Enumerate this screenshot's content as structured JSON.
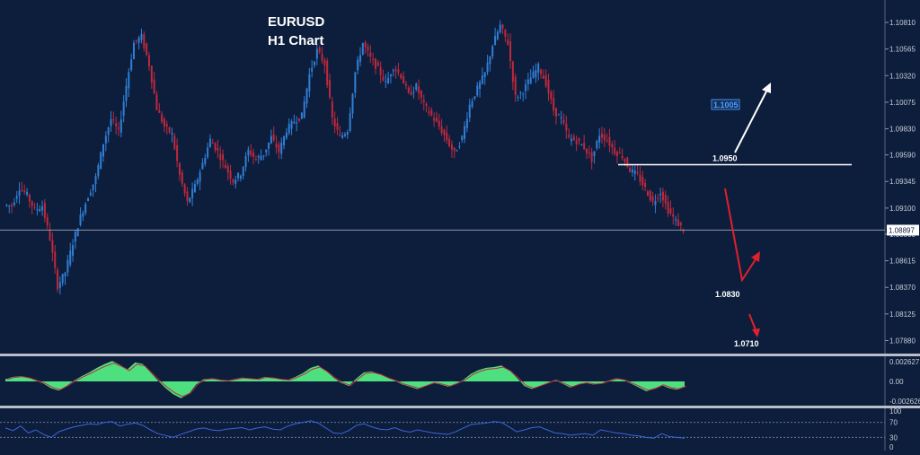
{
  "chart_data": [
    {
      "type": "candlestick",
      "symbol": "EURUSD",
      "timeframe": "H1 Chart",
      "title": "EURUSD",
      "subtitle": "H1 Chart",
      "ylim": [
        1.0776,
        1.11
      ],
      "y_ticks": [
        "1.10810",
        "1.10565",
        "1.10320",
        "1.10075",
        "1.09830",
        "1.09590",
        "1.09345",
        "1.09100",
        "1.08860",
        "1.08615",
        "1.08370",
        "1.08125",
        "1.07880"
      ],
      "current_price": "1.08897",
      "candle_color_up": "#2f7fd6",
      "candle_color_down": "#c0283c",
      "close_series": [
        1.0913,
        1.0912,
        1.0929,
        1.0922,
        1.0908,
        1.0912,
        1.0882,
        1.0838,
        1.0851,
        1.0878,
        1.0902,
        1.0921,
        1.0938,
        1.097,
        1.0992,
        1.098,
        1.1023,
        1.1062,
        1.1068,
        1.1042,
        1.1002,
        1.0985,
        1.0978,
        1.094,
        1.0915,
        1.093,
        1.0951,
        1.0973,
        1.0962,
        1.0948,
        1.0935,
        1.0942,
        1.0963,
        1.0955,
        1.096,
        1.0975,
        1.0962,
        1.0982,
        1.099,
        1.0995,
        1.1033,
        1.1055,
        1.1043,
        1.0992,
        1.0975,
        1.0982,
        1.1035,
        1.1062,
        1.1048,
        1.1038,
        1.1025,
        1.104,
        1.1032,
        1.1014,
        1.1022,
        1.1005,
        1.0995,
        1.0985,
        1.0973,
        1.096,
        1.0975,
        1.1005,
        1.102,
        1.1034,
        1.106,
        1.1078,
        1.1062,
        1.1012,
        1.1018,
        1.103,
        1.104,
        1.1025,
        1.1,
        1.0992,
        1.0974,
        1.0972,
        1.0966,
        1.0955,
        1.0978,
        1.0973,
        1.0962,
        1.0958,
        1.0945,
        1.094,
        1.0928,
        1.0915,
        1.0925,
        1.0908,
        1.0898,
        1.089
      ],
      "marked_levels": [
        {
          "label": "1.1005",
          "value": 1.1005,
          "style": "box"
        },
        {
          "label": "1.0950",
          "value": 1.095,
          "style": "line"
        },
        {
          "label": "1.0830",
          "value": 1.083,
          "style": "text"
        },
        {
          "label": "1.0710",
          "value": 1.071,
          "style": "text"
        }
      ],
      "projections": [
        {
          "color": "#ffffff",
          "direction": "up",
          "target": "1.1005"
        },
        {
          "color": "#e0202c",
          "direction": "down then up",
          "target": "1.0830"
        },
        {
          "color": "#e0202c",
          "direction": "down",
          "target": "1.0710"
        }
      ],
      "grid": false
    },
    {
      "type": "area",
      "name": "oscillator",
      "y_ticks": [
        "0.002627",
        "0.00",
        "-0.002626"
      ],
      "ylim": [
        -0.0032,
        0.0032
      ],
      "fill_color": "#4ee07f",
      "values": [
        0.0003,
        0.0006,
        0.0007,
        0.0005,
        0.0001,
        -0.0003,
        -0.0009,
        -0.0012,
        -0.0006,
        0.0001,
        0.0007,
        0.0012,
        0.0018,
        0.0023,
        0.0027,
        0.0022,
        0.0016,
        0.0025,
        0.0023,
        0.0012,
        0.0001,
        -0.0009,
        -0.0017,
        -0.0022,
        -0.0017,
        -0.0004,
        0.0003,
        0.0004,
        0.0002,
        0.0001,
        0.0003,
        0.0005,
        0.0004,
        0.0003,
        0.0006,
        0.0005,
        0.0003,
        0.0002,
        0.0006,
        0.0011,
        0.0018,
        0.0021,
        0.0014,
        0.0005,
        -0.0002,
        -0.0006,
        0.0004,
        0.0012,
        0.0013,
        0.001,
        0.0005,
        0.0001,
        -0.0004,
        -0.0007,
        -0.001,
        -0.0006,
        -0.0002,
        -0.0004,
        -0.0007,
        -0.0003,
        0.0002,
        0.001,
        0.0015,
        0.0018,
        0.0019,
        0.0021,
        0.0015,
        0.0005,
        -0.0006,
        -0.001,
        -0.0006,
        -0.0002,
        0.0002,
        -0.0003,
        -0.0008,
        -0.0004,
        -0.0002,
        -0.0004,
        -0.0003,
        0.0001,
        0.0004,
        0.0002,
        -0.0003,
        -0.0008,
        -0.0013,
        -0.001,
        -0.0005,
        -0.0009,
        -0.0011,
        -0.0007
      ]
    },
    {
      "type": "line",
      "name": "rsi",
      "y_ticks": [
        "100",
        "70",
        "30",
        "0"
      ],
      "ylim": [
        0,
        100
      ],
      "line_color": "#3c64dc",
      "values": [
        55,
        48,
        60,
        42,
        50,
        38,
        30,
        45,
        52,
        58,
        62,
        66,
        64,
        70,
        72,
        60,
        65,
        68,
        62,
        50,
        40,
        35,
        30,
        38,
        45,
        52,
        55,
        50,
        48,
        52,
        54,
        56,
        50,
        55,
        58,
        52,
        50,
        60,
        66,
        70,
        74,
        68,
        55,
        42,
        40,
        48,
        62,
        66,
        58,
        52,
        50,
        56,
        48,
        44,
        50,
        46,
        42,
        40,
        38,
        45,
        55,
        64,
        66,
        68,
        72,
        70,
        58,
        45,
        50,
        56,
        58,
        50,
        42,
        40,
        36,
        38,
        40,
        36,
        50,
        46,
        42,
        40,
        36,
        34,
        30,
        28,
        40,
        32,
        30,
        28
      ]
    }
  ]
}
